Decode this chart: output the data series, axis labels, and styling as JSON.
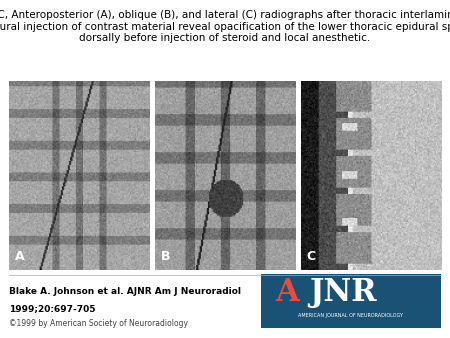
{
  "title_line1": "A–C, Anteroposterior (A), oblique (B), and lateral (C) radiographs after thoracic interlaminar",
  "title_line2": "epidural injection of contrast material reveal opacification of the lower thoracic epidural space",
  "title_line3": "dorsally before injection of steroid and local anesthetic.",
  "panel_labels": [
    "A",
    "B",
    "C"
  ],
  "citation_line1": "Blake A. Johnson et al. AJNR Am J Neuroradiol",
  "citation_line2": "1999;20:697-705",
  "copyright": "©1999 by American Society of Neuroradiology",
  "ainr_subtext": "AMERICAN JOURNAL OF NEURORADIOLOGY",
  "ainr_bg_color": "#1a5276",
  "ainr_text_color": "#ffffff",
  "ainr_a_color": "#e74c3c",
  "background_color": "#ffffff",
  "fig_width": 4.5,
  "fig_height": 3.38,
  "title_fontsize": 7.5,
  "label_fontsize": 9,
  "citation_fontsize": 6.5,
  "copyright_fontsize": 5.5
}
